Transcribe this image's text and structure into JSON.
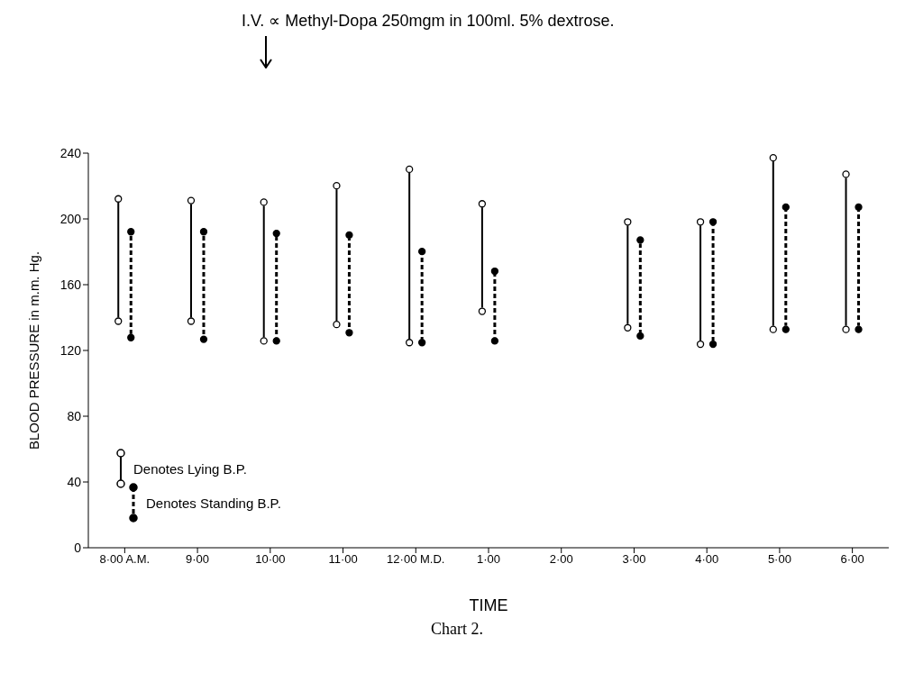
{
  "chart_data": {
    "type": "bar",
    "xlabel": "TIME",
    "ylabel": "BLOOD PRESSURE in m.m. Hg.",
    "annotations": [
      "I.V. ∝ Methyl-Dopa 250mgm in 100ml. 5% dextrose.",
      "Chart 2."
    ],
    "categories": [
      "8·00 A.M.",
      "9·00",
      "10·00",
      "11·00",
      "12·00 M.D.",
      "1·00",
      "2·00",
      "3·00",
      "4·00",
      "5·00",
      "6·00"
    ],
    "series": [
      {
        "name": "Denotes Lying B.P.",
        "color": "#000000",
        "line_style": "solid",
        "base": [
          140,
          140,
          128,
          138,
          127,
          146,
          null,
          136,
          126,
          135,
          135
        ],
        "values": [
          70,
          69,
          80,
          80,
          101,
          61,
          null,
          60,
          70,
          100,
          90
        ]
      },
      {
        "name": "Denotes Standing B.P.",
        "color": "#000000",
        "line_style": "dashed",
        "base": [
          130,
          129,
          128,
          133,
          127,
          128,
          null,
          131,
          126,
          135,
          135
        ],
        "values": [
          60,
          61,
          61,
          55,
          51,
          38,
          null,
          54,
          70,
          70,
          70
        ]
      }
    ],
    "ylim": [
      0,
      240
    ],
    "yticks": [
      0,
      40,
      80,
      120,
      160,
      200,
      240
    ],
    "grid": false,
    "legend": "bottom left",
    "marker": "circle"
  }
}
